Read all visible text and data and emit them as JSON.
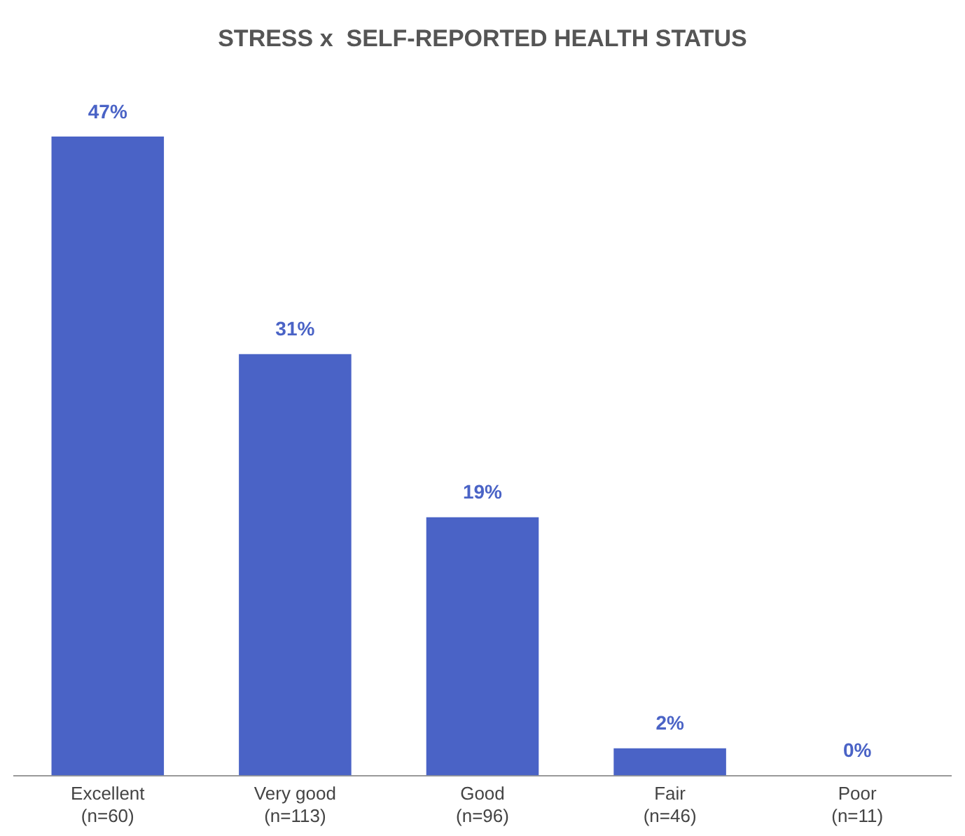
{
  "chart_data": {
    "type": "bar",
    "title": "STRESS x  SELF-REPORTED HEALTH STATUS",
    "categories": [
      "Excellent\n(n=60)",
      "Very good\n(n=113)",
      "Good\n(n=96)",
      "Fair\n(n=46)",
      "Poor\n(n=11)"
    ],
    "values": [
      47,
      31,
      19,
      2,
      0
    ],
    "value_labels": [
      "47%",
      "31%",
      "19%",
      "2%",
      "0%"
    ],
    "color": "#4a63c6",
    "grid": false,
    "legend": false
  }
}
